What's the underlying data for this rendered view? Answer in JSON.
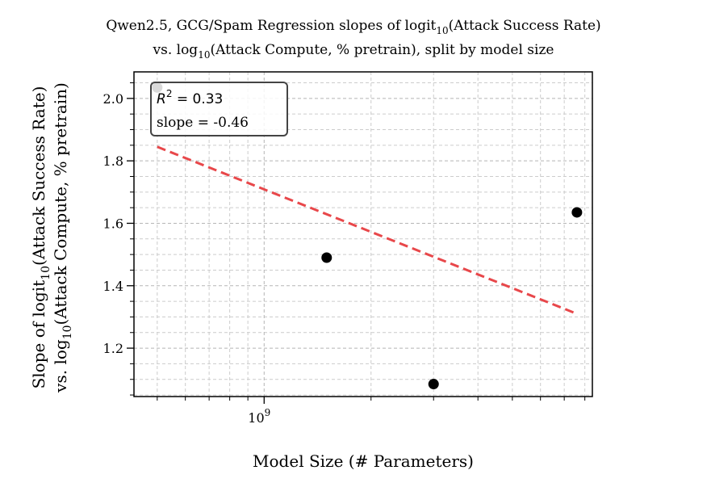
{
  "chart_data": {
    "type": "scatter",
    "title": {
      "line1_pre": "Qwen2.5, GCG/Spam Regression slopes of logit",
      "line1_sub": "10",
      "line1_post": "(Attack Success Rate)",
      "line2_pre": "vs. log",
      "line2_sub": "10",
      "line2_post": "(Attack Compute, % pretrain), split by model size"
    },
    "xlabel": "Model Size (# Parameters)",
    "ylabel": {
      "line1_pre": "Slope of logit",
      "line1_sub": "10",
      "line1_post": "(Attack Success Rate)",
      "line2_pre": "vs. log",
      "line2_sub": "10",
      "line2_post": "(Attack Compute, % pretrain)"
    },
    "x_scale": "log",
    "xlim": [
      430000000,
      8400000000
    ],
    "ylim": [
      1.045,
      2.085
    ],
    "x_tick_labels": [
      {
        "value": 1000000000,
        "base": "10",
        "exp": "9"
      }
    ],
    "x_minor_ticks": [
      400000000,
      500000000,
      600000000,
      700000000,
      800000000,
      900000000,
      2000000000,
      3000000000,
      4000000000,
      5000000000,
      6000000000,
      7000000000,
      8000000000
    ],
    "y_ticks": [
      1.2,
      1.4,
      1.6,
      1.8,
      2.0
    ],
    "y_tick_labels": [
      "1.2",
      "1.4",
      "1.6",
      "1.8",
      "2.0"
    ],
    "y_minor_ticks": [
      1.05,
      1.1,
      1.15,
      1.25,
      1.3,
      1.35,
      1.45,
      1.5,
      1.55,
      1.65,
      1.7,
      1.75,
      1.85,
      1.9,
      1.95,
      2.05
    ],
    "grid": true,
    "points": [
      {
        "x": 500000000,
        "y": 2.035
      },
      {
        "x": 1500000000,
        "y": 1.49
      },
      {
        "x": 3000000000,
        "y": 1.085
      },
      {
        "x": 7600000000,
        "y": 1.635
      }
    ],
    "point_color": "#000000",
    "fit_line": {
      "x": [
        500000000,
        7600000000
      ],
      "y": [
        1.845,
        1.31
      ],
      "color": "#e8474a",
      "style": "dashed"
    },
    "annotation": {
      "r2_symbol": "R",
      "r2_exp": "2",
      "r2_text": " = 0.33",
      "slope_text": "slope = -0.46",
      "placement": "top-left"
    }
  }
}
